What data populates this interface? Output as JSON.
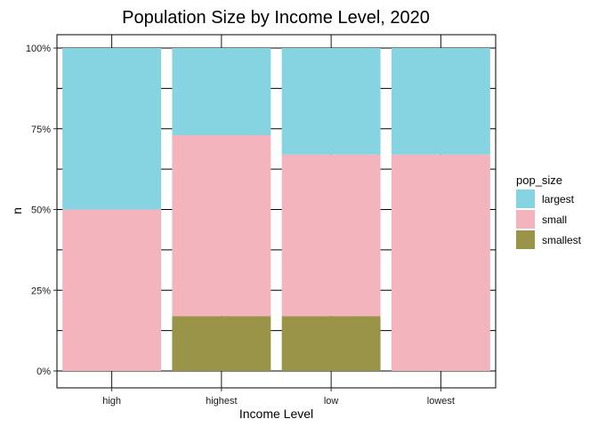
{
  "chart_data": {
    "type": "bar",
    "stacked": "percent",
    "title": "Population Size by Income Level, 2020",
    "xlabel": "Income Level",
    "ylabel": "n",
    "categories": [
      "high",
      "highest",
      "low",
      "lowest"
    ],
    "series": [
      {
        "name": "largest",
        "color": "#86D3E2",
        "values": [
          0.5,
          0.27,
          0.33,
          0.33
        ]
      },
      {
        "name": "small",
        "color": "#F4B4BD",
        "values": [
          0.5,
          0.56,
          0.5,
          0.67
        ]
      },
      {
        "name": "smallest",
        "color": "#9A9448",
        "values": [
          0.0,
          0.17,
          0.17,
          0.0
        ]
      }
    ],
    "stack_order_bottom_to_top": [
      "smallest",
      "small",
      "largest"
    ],
    "ylim": [
      0,
      1
    ],
    "yticks": [
      0,
      0.25,
      0.5,
      0.75,
      1
    ],
    "ytick_labels": [
      "0%",
      "25%",
      "50%",
      "75%",
      "100%"
    ],
    "grid": true,
    "legend": {
      "title": "pop_size",
      "placement": "right"
    }
  }
}
